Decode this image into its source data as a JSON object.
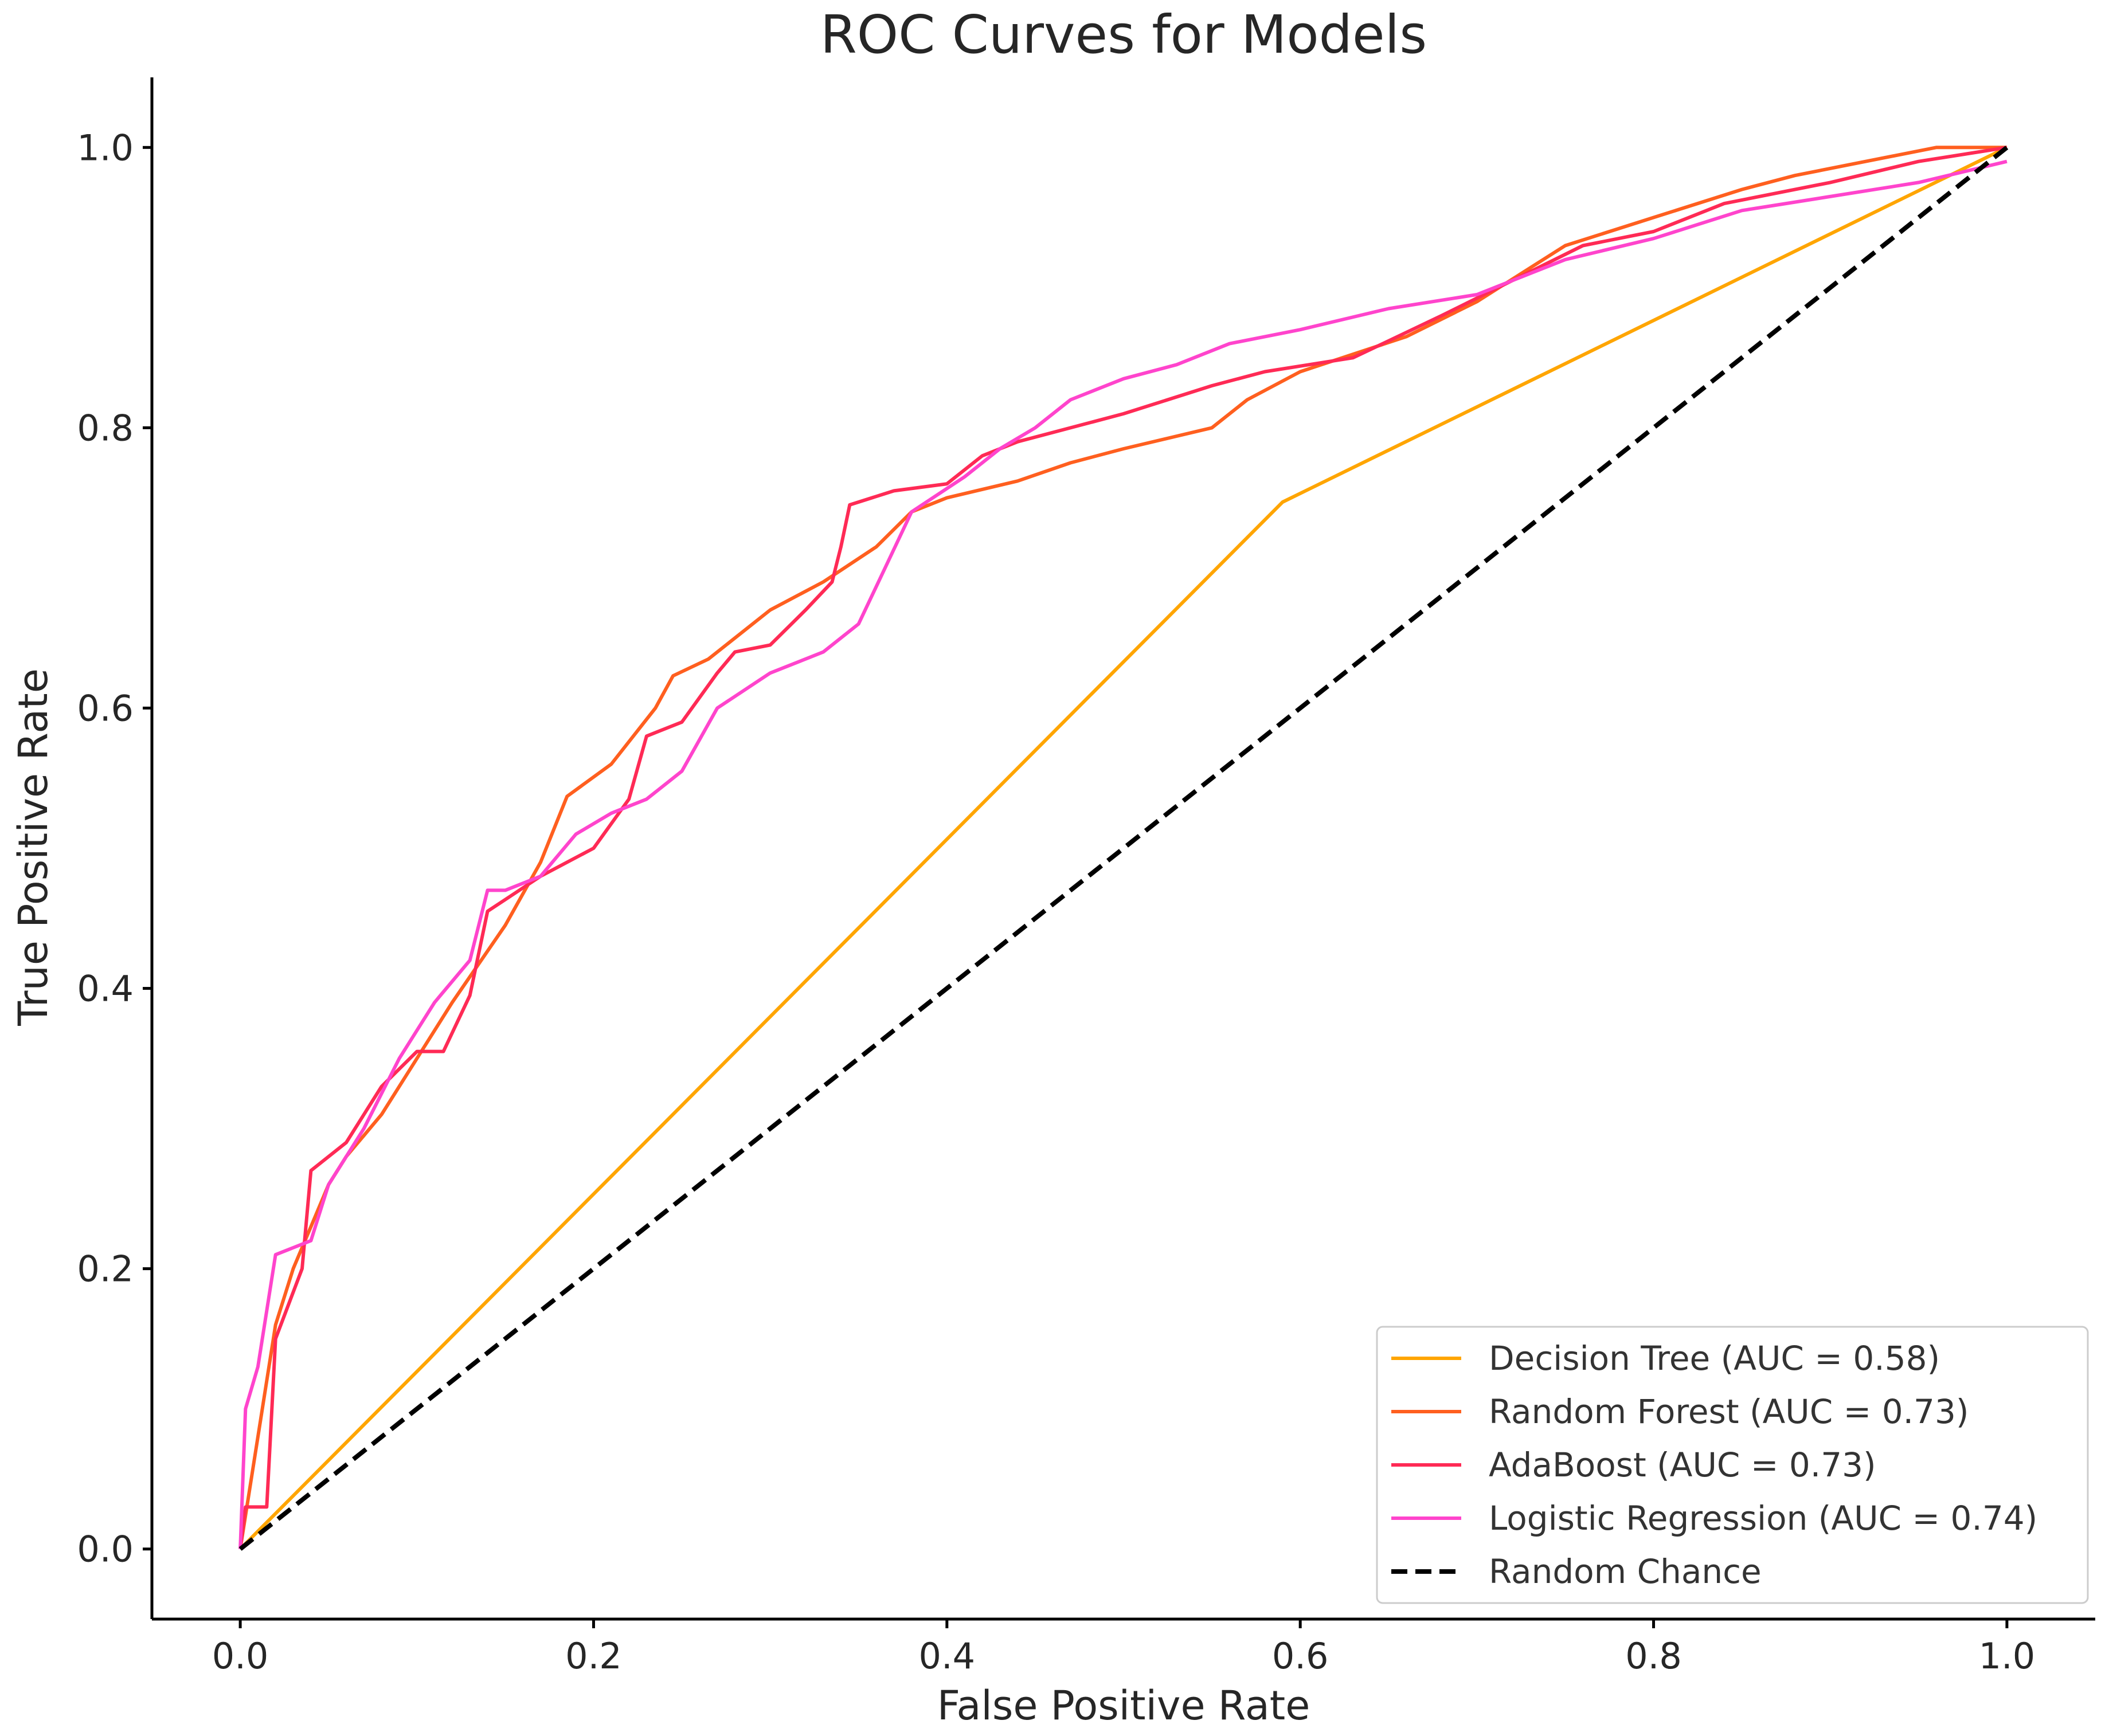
{
  "chart_data": {
    "type": "line",
    "title": "ROC Curves for Models",
    "xlabel": "False Positive Rate",
    "ylabel": "True Positive Rate",
    "xlim": [
      -0.05,
      1.05
    ],
    "ylim": [
      -0.05,
      1.05
    ],
    "x_ticks": [
      0.0,
      0.2,
      0.4,
      0.6,
      0.8,
      1.0
    ],
    "y_ticks": [
      0.0,
      0.2,
      0.4,
      0.6,
      0.8,
      1.0
    ],
    "x_tick_labels": [
      "0.0",
      "0.2",
      "0.4",
      "0.6",
      "0.8",
      "1.0"
    ],
    "y_tick_labels": [
      "0.0",
      "0.2",
      "0.4",
      "0.6",
      "0.8",
      "1.0"
    ],
    "grid": false,
    "legend_position": "lower-right",
    "series": [
      {
        "name": "Decision Tree (AUC = 0.58)",
        "color": "#FFA500",
        "dashed": false,
        "x": [
          0,
          0.59,
          1.0
        ],
        "y": [
          0,
          0.747,
          1.0
        ]
      },
      {
        "name": "Random Forest (AUC = 0.73)",
        "color": "#FF5F1F",
        "dashed": false,
        "x": [
          0,
          0.005,
          0.01,
          0.02,
          0.03,
          0.04,
          0.05,
          0.06,
          0.08,
          0.1,
          0.12,
          0.15,
          0.17,
          0.185,
          0.21,
          0.235,
          0.245,
          0.265,
          0.3,
          0.33,
          0.36,
          0.38,
          0.4,
          0.44,
          0.47,
          0.5,
          0.55,
          0.57,
          0.6,
          0.66,
          0.7,
          0.75,
          0.8,
          0.85,
          0.88,
          0.92,
          0.96,
          1.0
        ],
        "y": [
          0,
          0.04,
          0.08,
          0.16,
          0.2,
          0.23,
          0.26,
          0.28,
          0.31,
          0.35,
          0.39,
          0.445,
          0.49,
          0.537,
          0.56,
          0.6,
          0.623,
          0.635,
          0.67,
          0.69,
          0.715,
          0.74,
          0.75,
          0.762,
          0.775,
          0.785,
          0.8,
          0.82,
          0.84,
          0.865,
          0.89,
          0.93,
          0.95,
          0.97,
          0.98,
          0.99,
          1.0,
          1.0
        ]
      },
      {
        "name": "AdaBoost (AUC = 0.73)",
        "color": "#FF2A55",
        "dashed": false,
        "x": [
          0,
          0.003,
          0.008,
          0.015,
          0.02,
          0.035,
          0.04,
          0.06,
          0.08,
          0.1,
          0.115,
          0.13,
          0.14,
          0.17,
          0.2,
          0.22,
          0.23,
          0.25,
          0.27,
          0.28,
          0.3,
          0.32,
          0.335,
          0.34,
          0.345,
          0.37,
          0.4,
          0.42,
          0.44,
          0.47,
          0.5,
          0.55,
          0.58,
          0.63,
          0.68,
          0.72,
          0.76,
          0.8,
          0.84,
          0.9,
          0.95,
          1.0
        ],
        "y": [
          0,
          0.03,
          0.03,
          0.03,
          0.15,
          0.2,
          0.27,
          0.29,
          0.33,
          0.355,
          0.355,
          0.395,
          0.455,
          0.48,
          0.5,
          0.535,
          0.58,
          0.59,
          0.625,
          0.64,
          0.645,
          0.67,
          0.69,
          0.715,
          0.745,
          0.755,
          0.76,
          0.78,
          0.79,
          0.8,
          0.81,
          0.83,
          0.84,
          0.85,
          0.88,
          0.905,
          0.93,
          0.94,
          0.96,
          0.975,
          0.99,
          1.0
        ]
      },
      {
        "name": "Logistic Regression (AUC = 0.74)",
        "color": "#FF44CC",
        "dashed": false,
        "x": [
          0,
          0.003,
          0.01,
          0.02,
          0.03,
          0.04,
          0.05,
          0.07,
          0.09,
          0.11,
          0.13,
          0.14,
          0.15,
          0.17,
          0.19,
          0.21,
          0.23,
          0.25,
          0.27,
          0.3,
          0.33,
          0.35,
          0.365,
          0.38,
          0.41,
          0.43,
          0.45,
          0.47,
          0.5,
          0.53,
          0.56,
          0.6,
          0.65,
          0.7,
          0.75,
          0.8,
          0.85,
          0.9,
          0.95,
          1.0
        ],
        "y": [
          0,
          0.1,
          0.13,
          0.21,
          0.215,
          0.22,
          0.26,
          0.3,
          0.35,
          0.39,
          0.42,
          0.47,
          0.47,
          0.48,
          0.51,
          0.525,
          0.535,
          0.555,
          0.6,
          0.625,
          0.64,
          0.66,
          0.7,
          0.74,
          0.765,
          0.785,
          0.8,
          0.82,
          0.835,
          0.845,
          0.86,
          0.87,
          0.885,
          0.895,
          0.92,
          0.935,
          0.955,
          0.965,
          0.975,
          0.99
        ]
      },
      {
        "name": "Random Chance",
        "color": "#000000",
        "dashed": true,
        "x": [
          0,
          1
        ],
        "y": [
          0,
          1
        ]
      }
    ]
  }
}
